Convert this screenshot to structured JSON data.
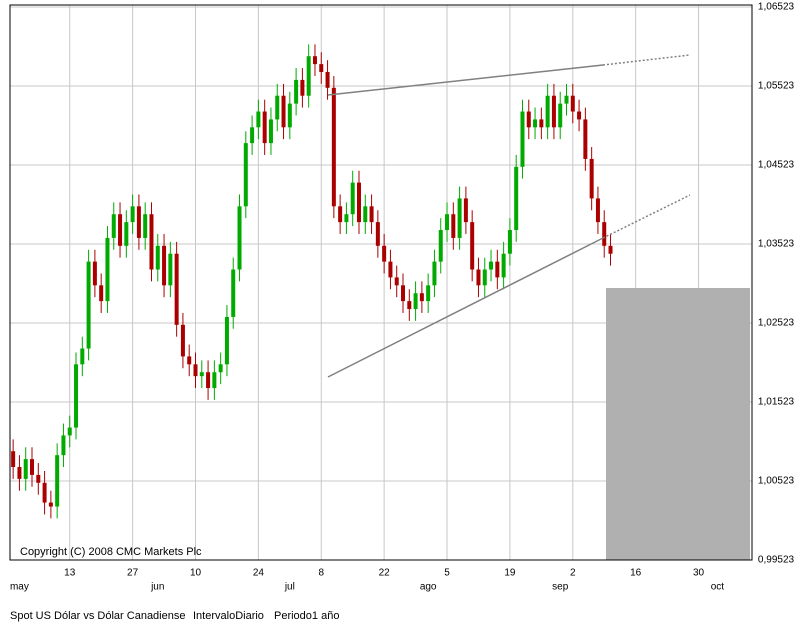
{
  "chart_data": {
    "type": "candlestick",
    "title": "Spot US Dólar vs Dólar Canadiense",
    "interval": "IntervaloDiario",
    "period": "Periodo1 año",
    "annotation": "Copyright (C) 2008 CMC Markets Plc",
    "up_color": "#00aa00",
    "down_color": "#aa0000",
    "grid": true,
    "categories": [
      null,
      null,
      null,
      null,
      null,
      null,
      null,
      null,
      null,
      "13",
      null,
      null,
      null,
      null,
      null,
      null,
      null,
      null,
      null,
      "27",
      null,
      null,
      null,
      null,
      null,
      null,
      null,
      null,
      null,
      "10",
      null,
      null,
      null,
      null,
      null,
      null,
      null,
      null,
      null,
      "24",
      null,
      null,
      null,
      null,
      null,
      null,
      null,
      null,
      null,
      "8",
      null,
      null,
      null,
      null,
      null,
      null,
      null,
      null,
      null,
      "22",
      null,
      null,
      null,
      null,
      null,
      null,
      null,
      null,
      null,
      "5",
      null,
      null,
      null,
      null,
      null,
      null,
      null,
      null,
      null,
      "19",
      null,
      null,
      null,
      null,
      null,
      null,
      null,
      null,
      null,
      "2",
      null,
      null,
      null,
      null,
      null,
      null,
      null,
      null,
      null,
      "16",
      null,
      null,
      null,
      null,
      null,
      null,
      null,
      null,
      null,
      "30",
      null,
      null,
      null,
      null,
      null,
      null,
      null,
      null
    ],
    "months": [
      null,
      "may",
      null,
      null,
      null,
      null,
      null,
      null,
      null,
      null,
      null,
      null,
      null,
      null,
      null,
      null,
      null,
      null,
      null,
      null,
      null,
      null,
      null,
      "jun",
      null,
      null,
      null,
      null,
      null,
      null,
      null,
      null,
      null,
      null,
      null,
      null,
      null,
      null,
      null,
      null,
      null,
      null,
      null,
      null,
      "jul",
      null,
      null,
      null,
      null,
      null,
      null,
      null,
      null,
      null,
      null,
      null,
      null,
      null,
      null,
      null,
      null,
      null,
      null,
      null,
      null,
      null,
      "ago",
      null,
      null,
      null,
      null,
      null,
      null,
      null,
      null,
      null,
      null,
      null,
      null,
      null,
      null,
      null,
      null,
      null,
      null,
      null,
      null,
      "sep",
      null,
      null,
      null,
      null,
      null,
      null,
      null,
      null,
      null,
      null,
      null,
      null,
      null,
      null,
      null,
      null,
      null,
      null,
      null,
      null,
      null,
      null,
      null,
      null,
      "oct",
      null,
      null,
      null,
      null,
      null
    ],
    "open": [
      1.009,
      1.007,
      1.0055,
      1.008,
      1.006,
      1.005,
      1.0025,
      1.002,
      1.0085,
      1.011,
      1.012,
      1.02,
      1.022,
      1.033,
      1.03,
      1.028,
      1.036,
      1.039,
      1.035,
      1.038,
      1.04,
      1.036,
      1.039,
      1.032,
      1.035,
      1.03,
      1.034,
      1.025,
      1.021,
      1.02,
      1.0185,
      1.019,
      1.017,
      1.019,
      1.02,
      1.026,
      1.032,
      1.04,
      1.048,
      1.05,
      1.052,
      1.048,
      1.051,
      1.054,
      1.05,
      1.053,
      1.056,
      1.054,
      1.059,
      1.058,
      1.057,
      1.055,
      1.04,
      1.038,
      1.039,
      1.043,
      1.038,
      1.04,
      1.038,
      1.035,
      1.033,
      1.031,
      1.03,
      1.028,
      1.027,
      1.029,
      1.028,
      1.03,
      1.033,
      1.037,
      1.039,
      1.036,
      1.041,
      1.038,
      1.032,
      1.03,
      1.032,
      1.033,
      1.031,
      1.034,
      1.037,
      1.045,
      1.052,
      1.05,
      1.051,
      1.05,
      1.054,
      1.05,
      1.053,
      1.054,
      1.052,
      1.051,
      1.046,
      1.041,
      1.038,
      1.035,
      null,
      null,
      null,
      null,
      null,
      null,
      null,
      null,
      null,
      null,
      null,
      null,
      null,
      null,
      null,
      null,
      null,
      null,
      null,
      null,
      null,
      null
    ],
    "high": [
      1.0105,
      1.0085,
      1.0095,
      1.0095,
      1.0075,
      1.0065,
      1.004,
      1.01,
      1.0125,
      1.0135,
      1.0215,
      1.0235,
      1.0345,
      1.0345,
      1.0315,
      1.0375,
      1.0405,
      1.0405,
      1.0395,
      1.0415,
      1.0415,
      1.0405,
      1.0405,
      1.0365,
      1.0365,
      1.0355,
      1.0355,
      1.0265,
      1.0225,
      1.0215,
      1.0205,
      1.0205,
      1.0205,
      1.0215,
      1.0275,
      1.0335,
      1.0415,
      1.0495,
      1.0515,
      1.0535,
      1.0535,
      1.0525,
      1.0555,
      1.0555,
      1.0545,
      1.0575,
      1.0575,
      1.0605,
      1.0605,
      1.0595,
      1.0585,
      1.0565,
      1.0415,
      1.0405,
      1.0445,
      1.0445,
      1.0415,
      1.0415,
      1.0395,
      1.0365,
      1.0345,
      1.0325,
      1.0315,
      1.0295,
      1.0305,
      1.0305,
      1.0315,
      1.0345,
      1.0385,
      1.0405,
      1.0405,
      1.0425,
      1.0425,
      1.0395,
      1.0335,
      1.0335,
      1.0345,
      1.0345,
      1.0355,
      1.0385,
      1.0465,
      1.0535,
      1.0535,
      1.0525,
      1.0525,
      1.0555,
      1.0555,
      1.0545,
      1.0555,
      1.0555,
      1.0535,
      1.0525,
      1.0475,
      1.0425,
      1.0395,
      1.0365,
      null,
      null,
      null,
      null,
      null,
      null,
      null,
      null,
      null,
      null,
      null,
      null,
      null,
      null,
      null,
      null,
      null,
      null,
      null,
      null,
      null,
      null
    ],
    "low": [
      1.0055,
      1.004,
      1.004,
      1.0045,
      1.0035,
      1.001,
      1.0005,
      1.0005,
      1.007,
      1.0095,
      1.0105,
      1.0185,
      1.0205,
      1.0285,
      1.0265,
      1.0265,
      1.0345,
      1.0335,
      1.0335,
      1.0365,
      1.0345,
      1.0345,
      1.0305,
      1.0305,
      1.0285,
      1.0285,
      1.0235,
      1.0195,
      1.0185,
      1.017,
      1.017,
      1.0155,
      1.0155,
      1.0175,
      1.0185,
      1.0245,
      1.0305,
      1.0385,
      1.0465,
      1.0485,
      1.0465,
      1.0465,
      1.0495,
      1.0485,
      1.0485,
      1.0515,
      1.0525,
      1.0525,
      1.0565,
      1.0555,
      1.0535,
      1.0385,
      1.0365,
      1.0365,
      1.0375,
      1.0365,
      1.0365,
      1.0365,
      1.0335,
      1.0315,
      1.0295,
      1.0285,
      1.0265,
      1.0255,
      1.0255,
      1.0265,
      1.0265,
      1.0285,
      1.0315,
      1.0355,
      1.0345,
      1.0345,
      1.0365,
      1.0305,
      1.0285,
      1.0285,
      1.0305,
      1.0295,
      1.0295,
      1.0325,
      1.0355,
      1.0435,
      1.0485,
      1.0485,
      1.0485,
      1.0485,
      1.0485,
      1.0485,
      1.0515,
      1.0505,
      1.0495,
      1.0445,
      1.0395,
      1.0365,
      1.0335,
      1.0325,
      null,
      null,
      null,
      null,
      null,
      null,
      null,
      null,
      null,
      null,
      null,
      null,
      null,
      null,
      null,
      null,
      null,
      null,
      null,
      null,
      null,
      null
    ],
    "close": [
      1.007,
      1.0055,
      1.008,
      1.006,
      1.005,
      1.0025,
      1.002,
      1.0085,
      1.011,
      1.012,
      1.02,
      1.022,
      1.033,
      1.03,
      1.028,
      1.036,
      1.039,
      1.035,
      1.038,
      1.04,
      1.036,
      1.039,
      1.032,
      1.035,
      1.03,
      1.034,
      1.025,
      1.021,
      1.02,
      1.0185,
      1.019,
      1.017,
      1.019,
      1.02,
      1.026,
      1.032,
      1.04,
      1.048,
      1.05,
      1.052,
      1.048,
      1.051,
      1.054,
      1.05,
      1.053,
      1.056,
      1.054,
      1.059,
      1.058,
      1.057,
      1.055,
      1.04,
      1.038,
      1.039,
      1.043,
      1.038,
      1.04,
      1.038,
      1.035,
      1.033,
      1.031,
      1.03,
      1.028,
      1.027,
      1.029,
      1.028,
      1.03,
      1.033,
      1.037,
      1.039,
      1.036,
      1.041,
      1.038,
      1.032,
      1.03,
      1.032,
      1.033,
      1.031,
      1.034,
      1.037,
      1.045,
      1.052,
      1.05,
      1.051,
      1.05,
      1.054,
      1.05,
      1.053,
      1.054,
      1.052,
      1.051,
      1.046,
      1.041,
      1.038,
      1.035,
      1.034,
      null,
      null,
      null,
      null,
      null,
      null,
      null,
      null,
      null,
      null,
      null,
      null,
      null,
      null,
      null,
      null,
      null,
      null,
      null,
      null,
      null,
      null
    ],
    "ylim": [
      0.99523,
      1.06523
    ],
    "yticks": [
      {
        "value": 0.99523,
        "label": "0,99523"
      },
      {
        "value": 1.00523,
        "label": "1,00523"
      },
      {
        "value": 1.01523,
        "label": "1,01523"
      },
      {
        "value": 1.02523,
        "label": "1,02523"
      },
      {
        "value": 1.03523,
        "label": "1,03523"
      },
      {
        "value": 1.04523,
        "label": "1,04523"
      },
      {
        "value": 1.05523,
        "label": "1,05523"
      },
      {
        "value": 1.06523,
        "label": "1,06523"
      }
    ]
  }
}
